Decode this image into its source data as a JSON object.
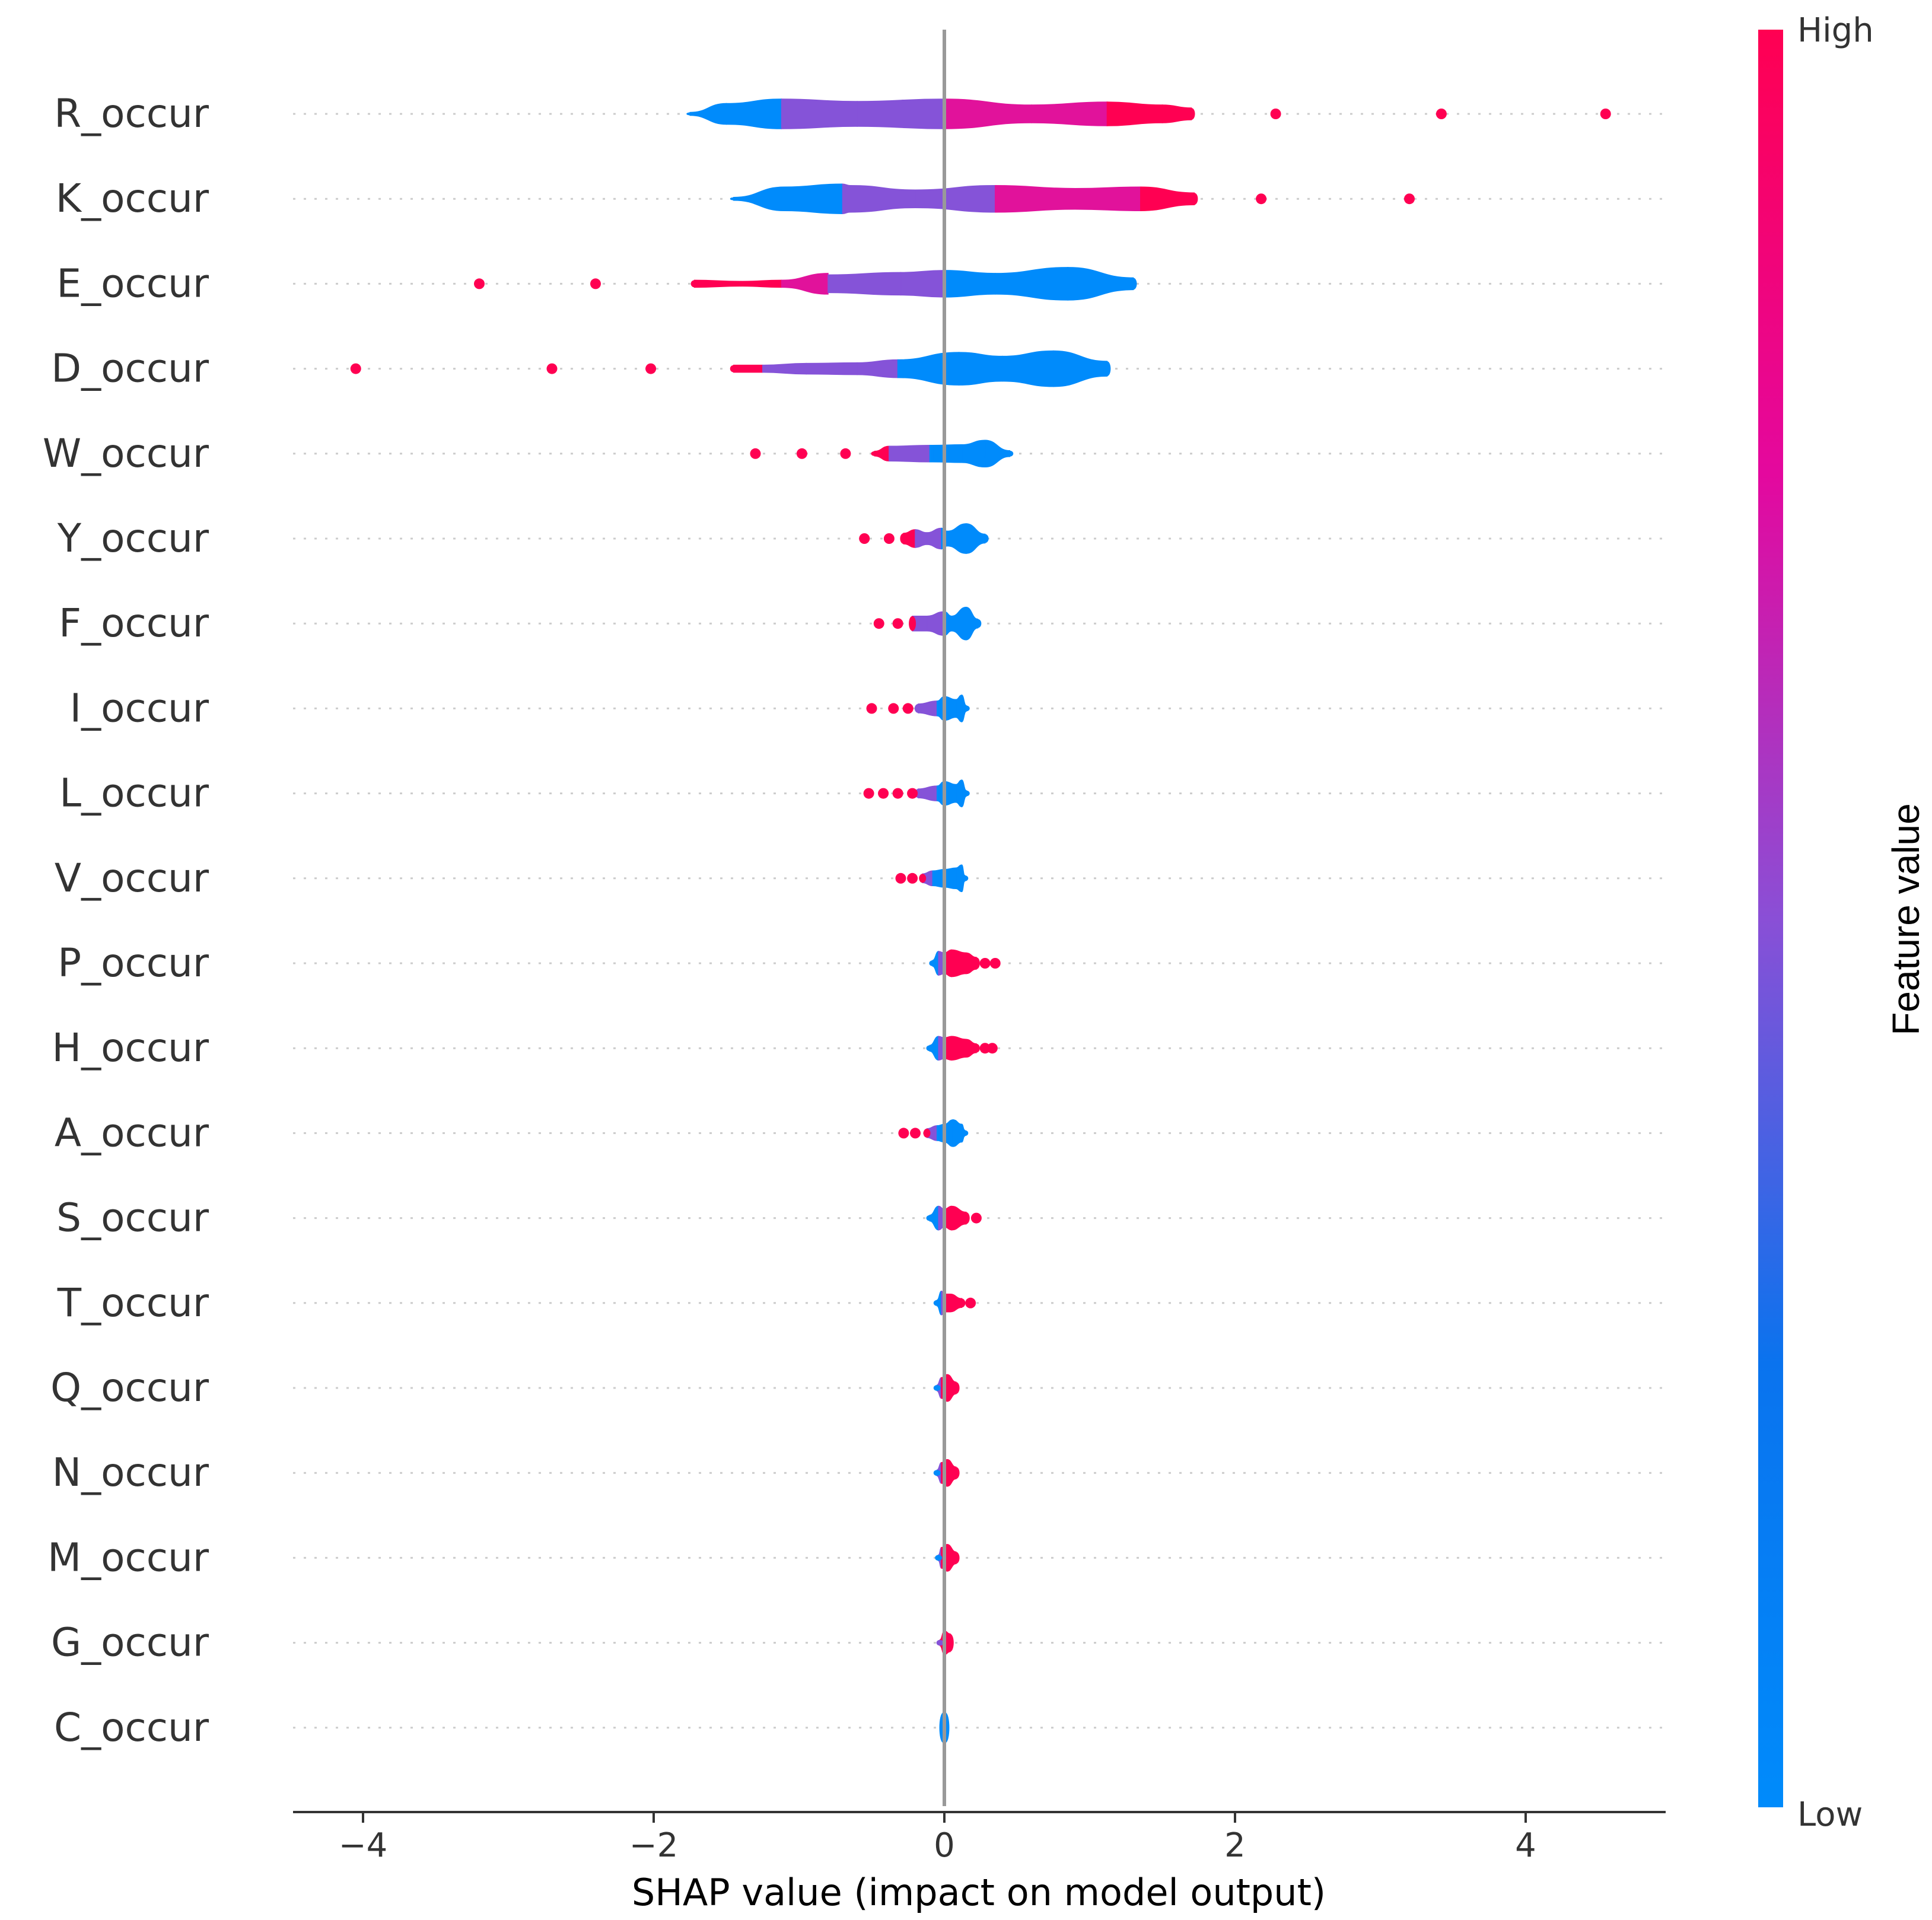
{
  "chart_data": {
    "type": "violin",
    "xlabel": "SHAP value (impact on model output)",
    "xlim": [
      -4.5,
      4.95
    ],
    "xticks": [
      -4,
      -2,
      0,
      2,
      4
    ],
    "xtick_labels": [
      "−4",
      "−2",
      "0",
      "2",
      "4"
    ],
    "colorbar": {
      "title": "Feature value",
      "high_label": "High",
      "low_label": "Low"
    },
    "colors": {
      "low": "#008bfb",
      "mid": "#8553d8",
      "high": "#ff0052",
      "zero_line": "#999999",
      "grid": "#cccccc"
    },
    "features": [
      {
        "name": "R_occur",
        "segments": [
          [
            -1.75,
            0.05,
            "low"
          ],
          [
            -1.5,
            0.35,
            "low"
          ],
          [
            -1.12,
            0.5,
            "low"
          ],
          [
            -1.12,
            0.5,
            "mid"
          ],
          [
            -0.6,
            0.42,
            "mid"
          ],
          [
            0,
            0.5,
            "mid"
          ],
          [
            0,
            0.5,
            "highish"
          ],
          [
            0.6,
            0.3,
            "highish"
          ],
          [
            1.12,
            0.4,
            "highish"
          ],
          [
            1.12,
            0.4,
            "high"
          ],
          [
            1.5,
            0.3,
            "high"
          ],
          [
            1.7,
            0.2,
            "high"
          ]
        ],
        "outliers": [
          2.28,
          3.42,
          4.55
        ]
      },
      {
        "name": "K_occur",
        "segments": [
          [
            -1.45,
            0.05,
            "low"
          ],
          [
            -1.1,
            0.4,
            "low"
          ],
          [
            -0.7,
            0.5,
            "low"
          ],
          [
            -0.65,
            0.45,
            "mid"
          ],
          [
            -0.2,
            0.3,
            "mid"
          ],
          [
            0.35,
            0.45,
            "mid"
          ],
          [
            0.35,
            0.45,
            "highish"
          ],
          [
            0.9,
            0.35,
            "highish"
          ],
          [
            1.35,
            0.4,
            "highish"
          ],
          [
            1.35,
            0.4,
            "high"
          ],
          [
            1.72,
            0.2,
            "high"
          ]
        ],
        "outliers": [
          2.18,
          3.2
        ]
      },
      {
        "name": "E_occur",
        "segments": [
          [
            -1.72,
            0.12,
            "high"
          ],
          [
            -1.4,
            0.08,
            "high"
          ],
          [
            -1.12,
            0.12,
            "high"
          ],
          [
            -0.8,
            0.35,
            "highish"
          ],
          [
            -0.8,
            0.3,
            "mid"
          ],
          [
            -0.3,
            0.38,
            "mid"
          ],
          [
            0,
            0.45,
            "mid"
          ],
          [
            0,
            0.45,
            "low"
          ],
          [
            0.35,
            0.35,
            "low"
          ],
          [
            0.85,
            0.55,
            "low"
          ],
          [
            1.3,
            0.2,
            "low"
          ]
        ],
        "outliers": [
          -3.2,
          -2.4
        ]
      },
      {
        "name": "D_occur",
        "segments": [
          [
            -1.45,
            0.12,
            "high"
          ],
          [
            -1.25,
            0.12,
            "high"
          ],
          [
            -0.95,
            0.18,
            "mid"
          ],
          [
            -0.6,
            0.2,
            "mid"
          ],
          [
            -0.32,
            0.3,
            "mid"
          ],
          [
            -0.32,
            0.3,
            "low"
          ],
          [
            0.1,
            0.55,
            "low"
          ],
          [
            0.4,
            0.42,
            "low"
          ],
          [
            0.75,
            0.6,
            "low"
          ],
          [
            1.12,
            0.25,
            "low"
          ]
        ],
        "outliers": [
          -4.05,
          -2.7,
          -2.02
        ]
      },
      {
        "name": "W_occur",
        "segments": [
          [
            -0.48,
            0.08,
            "high"
          ],
          [
            -0.38,
            0.25,
            "high"
          ],
          [
            -0.38,
            0.25,
            "mid"
          ],
          [
            -0.1,
            0.28,
            "mid"
          ],
          [
            -0.08,
            0.28,
            "low"
          ],
          [
            0.12,
            0.3,
            "low"
          ],
          [
            0.28,
            0.45,
            "low"
          ],
          [
            0.45,
            0.1,
            "low"
          ]
        ],
        "outliers": [
          -1.3,
          -0.98,
          -0.68
        ]
      },
      {
        "name": "Y_occur",
        "segments": [
          [
            -0.28,
            0.18,
            "high"
          ],
          [
            -0.2,
            0.3,
            "high"
          ],
          [
            -0.12,
            0.2,
            "mid"
          ],
          [
            -0.02,
            0.35,
            "mid"
          ],
          [
            0.02,
            0.25,
            "low"
          ],
          [
            0.15,
            0.5,
            "low"
          ],
          [
            0.28,
            0.15,
            "low"
          ]
        ],
        "outliers": [
          -0.55,
          -0.38
        ]
      },
      {
        "name": "F_occur",
        "segments": [
          [
            -0.22,
            0.25,
            "high"
          ],
          [
            -0.12,
            0.25,
            "mid"
          ],
          [
            0,
            0.4,
            "mid"
          ],
          [
            0.05,
            0.25,
            "low"
          ],
          [
            0.15,
            0.55,
            "low"
          ],
          [
            0.23,
            0.15,
            "low"
          ]
        ],
        "outliers": [
          -0.45,
          -0.32
        ]
      },
      {
        "name": "I_occur",
        "segments": [
          [
            -0.18,
            0.15,
            "mid"
          ],
          [
            -0.05,
            0.25,
            "mid"
          ],
          [
            0,
            0.4,
            "low"
          ],
          [
            0.08,
            0.3,
            "low"
          ],
          [
            0.12,
            0.45,
            "low"
          ],
          [
            0.15,
            0.1,
            "low"
          ]
        ],
        "outliers": [
          -0.5,
          -0.35,
          -0.25
        ]
      },
      {
        "name": "L_occur",
        "segments": [
          [
            -0.18,
            0.15,
            "mid"
          ],
          [
            -0.05,
            0.25,
            "mid"
          ],
          [
            0,
            0.4,
            "low"
          ],
          [
            0.08,
            0.3,
            "low"
          ],
          [
            0.12,
            0.45,
            "low"
          ],
          [
            0.15,
            0.1,
            "low"
          ]
        ],
        "outliers": [
          -0.52,
          -0.42,
          -0.32,
          -0.22
        ]
      },
      {
        "name": "V_occur",
        "segments": [
          [
            -0.15,
            0.15,
            "high"
          ],
          [
            -0.08,
            0.25,
            "mid"
          ],
          [
            0,
            0.3,
            "low"
          ],
          [
            0.08,
            0.35,
            "low"
          ],
          [
            0.12,
            0.45,
            "low"
          ],
          [
            0.14,
            0.1,
            "low"
          ]
        ],
        "outliers": [
          -0.3,
          -0.22
        ]
      },
      {
        "name": "P_occur",
        "segments": [
          [
            -0.08,
            0.1,
            "low"
          ],
          [
            -0.04,
            0.4,
            "low"
          ],
          [
            0,
            0.35,
            "mid"
          ],
          [
            0.05,
            0.45,
            "high"
          ],
          [
            0.15,
            0.35,
            "high"
          ],
          [
            0.22,
            0.2,
            "high"
          ]
        ],
        "outliers": [
          0.28,
          0.35
        ]
      },
      {
        "name": "H_occur",
        "segments": [
          [
            -0.1,
            0.1,
            "low"
          ],
          [
            -0.04,
            0.4,
            "low"
          ],
          [
            0,
            0.35,
            "mid"
          ],
          [
            0.05,
            0.4,
            "high"
          ],
          [
            0.15,
            0.3,
            "high"
          ],
          [
            0.22,
            0.15,
            "high"
          ]
        ],
        "outliers": [
          0.28,
          0.33
        ]
      },
      {
        "name": "A_occur",
        "segments": [
          [
            -0.12,
            0.15,
            "high"
          ],
          [
            -0.05,
            0.25,
            "mid"
          ],
          [
            0,
            0.3,
            "low"
          ],
          [
            0.06,
            0.45,
            "low"
          ],
          [
            0.12,
            0.3,
            "low"
          ],
          [
            0.14,
            0.1,
            "low"
          ]
        ],
        "outliers": [
          -0.28,
          -0.2
        ]
      },
      {
        "name": "S_occur",
        "segments": [
          [
            -0.1,
            0.1,
            "low"
          ],
          [
            -0.04,
            0.4,
            "low"
          ],
          [
            0,
            0.3,
            "mid"
          ],
          [
            0.05,
            0.4,
            "high"
          ],
          [
            0.15,
            0.2,
            "high"
          ]
        ],
        "outliers": [
          0.22
        ]
      },
      {
        "name": "T_occur",
        "segments": [
          [
            -0.05,
            0.1,
            "low"
          ],
          [
            -0.02,
            0.4,
            "low"
          ],
          [
            0,
            0.3,
            "mid"
          ],
          [
            0.04,
            0.3,
            "high"
          ],
          [
            0.12,
            0.15,
            "high"
          ]
        ],
        "outliers": [
          0.18
        ]
      },
      {
        "name": "Q_occur",
        "segments": [
          [
            -0.05,
            0.1,
            "low"
          ],
          [
            -0.02,
            0.35,
            "mid"
          ],
          [
            0.02,
            0.45,
            "high"
          ],
          [
            0.08,
            0.2,
            "high"
          ]
        ],
        "outliers": []
      },
      {
        "name": "N_occur",
        "segments": [
          [
            -0.05,
            0.1,
            "low"
          ],
          [
            -0.02,
            0.35,
            "mid"
          ],
          [
            0.02,
            0.45,
            "high"
          ],
          [
            0.08,
            0.2,
            "high"
          ]
        ],
        "outliers": []
      },
      {
        "name": "M_occur",
        "segments": [
          [
            -0.04,
            0.1,
            "low"
          ],
          [
            -0.02,
            0.35,
            "mid"
          ],
          [
            0.02,
            0.45,
            "high"
          ],
          [
            0.08,
            0.2,
            "high"
          ]
        ],
        "outliers": []
      },
      {
        "name": "G_occur",
        "segments": [
          [
            -0.03,
            0.1,
            "mid"
          ],
          [
            0,
            0.4,
            "high"
          ],
          [
            0.04,
            0.3,
            "high"
          ]
        ],
        "outliers": []
      },
      {
        "name": "C_occur",
        "segments": [
          [
            -0.01,
            0.5,
            "low"
          ],
          [
            0.01,
            0.5,
            "low"
          ]
        ],
        "outliers": []
      }
    ]
  }
}
